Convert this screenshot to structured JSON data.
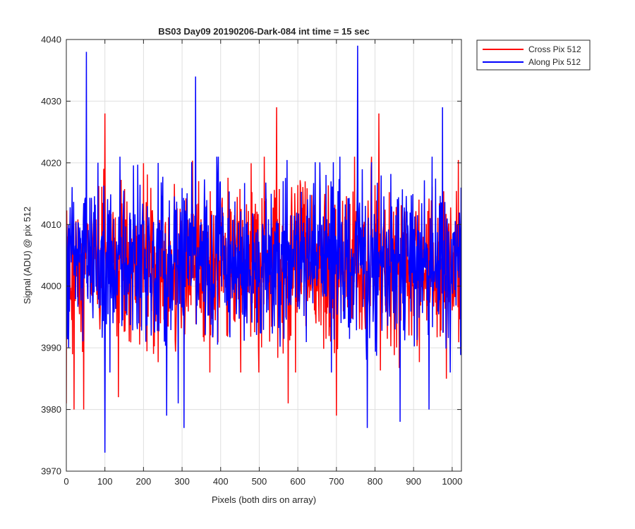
{
  "chart_data": {
    "type": "line",
    "title": "BS03 Day09 20190206-Dark-084 int time = 15 sec",
    "xlabel": "Pixels (both dirs on array)",
    "ylabel": "Signal (ADU) @ pix 512",
    "xlim": [
      0,
      1024
    ],
    "ylim": [
      3970,
      4040
    ],
    "xticks": [
      0,
      100,
      200,
      300,
      400,
      500,
      600,
      700,
      800,
      900,
      1000
    ],
    "yticks": [
      3970,
      3980,
      3990,
      4000,
      4010,
      4020,
      4030,
      4040
    ],
    "grid": true,
    "legend": "outside top-right",
    "series": [
      {
        "name": "Cross Pix 512",
        "color": "#ff0000",
        "style": "noise",
        "x_range": [
          0,
          1024
        ],
        "mean": 4003,
        "extremes": [
          {
            "x": 0,
            "y": 3981
          },
          {
            "x": 20,
            "y": 3980
          },
          {
            "x": 45,
            "y": 3980
          },
          {
            "x": 100,
            "y": 4028
          },
          {
            "x": 135,
            "y": 3982
          },
          {
            "x": 545,
            "y": 4029
          },
          {
            "x": 575,
            "y": 3981
          },
          {
            "x": 700,
            "y": 3979
          },
          {
            "x": 810,
            "y": 4028
          },
          {
            "x": 985,
            "y": 3985
          }
        ]
      },
      {
        "name": "Along Pix 512",
        "color": "#0000ff",
        "style": "noise",
        "x_range": [
          0,
          1024
        ],
        "mean": 4004,
        "extremes": [
          {
            "x": 52,
            "y": 4038
          },
          {
            "x": 100,
            "y": 3973
          },
          {
            "x": 260,
            "y": 3979
          },
          {
            "x": 290,
            "y": 3981
          },
          {
            "x": 305,
            "y": 3977
          },
          {
            "x": 335,
            "y": 4034
          },
          {
            "x": 755,
            "y": 4039
          },
          {
            "x": 780,
            "y": 3977
          },
          {
            "x": 865,
            "y": 3978
          },
          {
            "x": 940,
            "y": 3980
          },
          {
            "x": 975,
            "y": 4029
          }
        ]
      }
    ]
  }
}
